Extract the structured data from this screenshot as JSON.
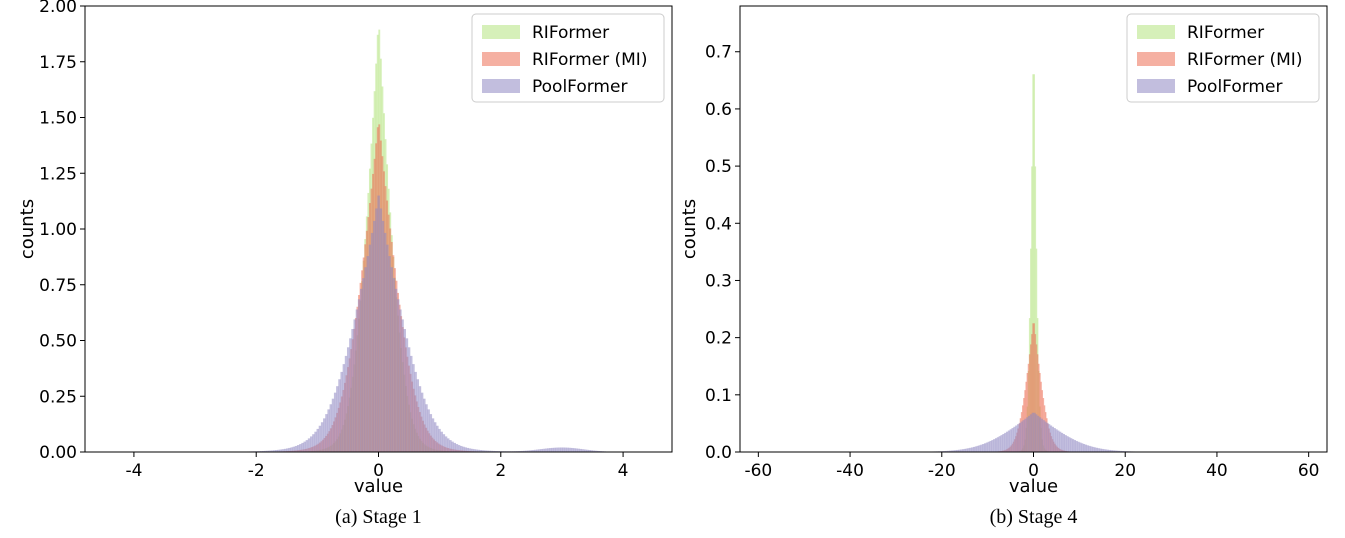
{
  "chart_data": [
    {
      "type": "histogram",
      "caption": "(a) Stage 1",
      "xlabel": "value",
      "ylabel": "counts",
      "xlim": [
        -4.8,
        4.8
      ],
      "ylim": [
        0,
        2.0
      ],
      "xticks": [
        -4,
        -2,
        0,
        2,
        4
      ],
      "yticks": [
        0.0,
        0.25,
        0.5,
        0.75,
        1.0,
        1.25,
        1.5,
        1.75,
        2.0
      ],
      "xtick_labels": [
        "-4",
        "-2",
        "0",
        "2",
        "4"
      ],
      "ytick_labels": [
        "0.00",
        "0.25",
        "0.50",
        "0.75",
        "1.00",
        "1.25",
        "1.50",
        "1.75",
        "2.00"
      ],
      "legend_position": "top-right",
      "series": [
        {
          "name": "RIFormer",
          "color": "#b5e37f",
          "opacity": 0.55,
          "peak": 1.95,
          "scale": 0.2,
          "support": [
            -2.2,
            2.4
          ]
        },
        {
          "name": "RIFormer (MI)",
          "color": "#ec6f55",
          "opacity": 0.55,
          "peak": 1.5,
          "scale": 0.28,
          "support": [
            -2.2,
            2.4
          ]
        },
        {
          "name": "PoolFormer",
          "color": "#8f88c2",
          "opacity": 0.55,
          "peak": 1.15,
          "scale": 0.38,
          "support": [
            -2.4,
            4.0
          ],
          "secondary_peak": {
            "center": 3.0,
            "height": 0.02,
            "width": 0.35
          }
        }
      ]
    },
    {
      "type": "histogram",
      "caption": "(b) Stage 4",
      "xlabel": "value",
      "ylabel": "counts",
      "xlim": [
        -64,
        64
      ],
      "ylim": [
        0,
        0.78
      ],
      "xticks": [
        -60,
        -40,
        -20,
        0,
        20,
        40,
        60
      ],
      "yticks": [
        0.0,
        0.1,
        0.2,
        0.3,
        0.4,
        0.5,
        0.6,
        0.7
      ],
      "xtick_labels": [
        "-60",
        "-40",
        "-20",
        "0",
        "20",
        "40",
        "60"
      ],
      "ytick_labels": [
        "0.0",
        "0.1",
        "0.2",
        "0.3",
        "0.4",
        "0.5",
        "0.6",
        "0.7"
      ],
      "legend_position": "top-right",
      "series": [
        {
          "name": "RIFormer",
          "color": "#b5e37f",
          "opacity": 0.55,
          "peak": 0.75,
          "scale": 0.55,
          "support": [
            -25,
            25
          ]
        },
        {
          "name": "RIFormer (MI)",
          "color": "#ec6f55",
          "opacity": 0.55,
          "peak": 0.235,
          "scale": 1.6,
          "support": [
            -25,
            25
          ]
        },
        {
          "name": "PoolFormer",
          "color": "#8f88c2",
          "opacity": 0.55,
          "peak": 0.07,
          "scale": 5.5,
          "support": [
            -40,
            40
          ]
        }
      ]
    }
  ]
}
